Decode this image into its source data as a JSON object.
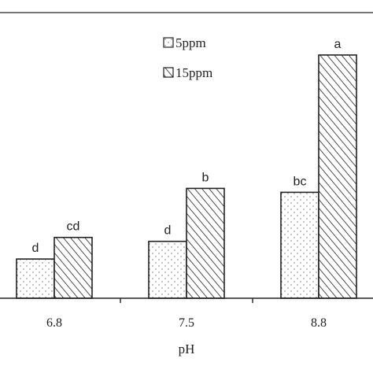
{
  "chart_data": {
    "type": "bar",
    "categories": [
      "6.8",
      "7.5",
      "8.8"
    ],
    "series": [
      {
        "name": "5ppm",
        "values": [
          1.0,
          1.45,
          2.7
        ],
        "letters": [
          "d",
          "d",
          "bc"
        ],
        "pattern": "dots"
      },
      {
        "name": "15ppm",
        "values": [
          1.55,
          2.8,
          6.2
        ],
        "letters": [
          "cd",
          "b",
          "a"
        ],
        "pattern": "hatch"
      }
    ],
    "xlabel": "pH",
    "ylabel": "",
    "ylim": [
      0,
      6.8
    ],
    "legend_position": "top-center",
    "grid": false
  }
}
